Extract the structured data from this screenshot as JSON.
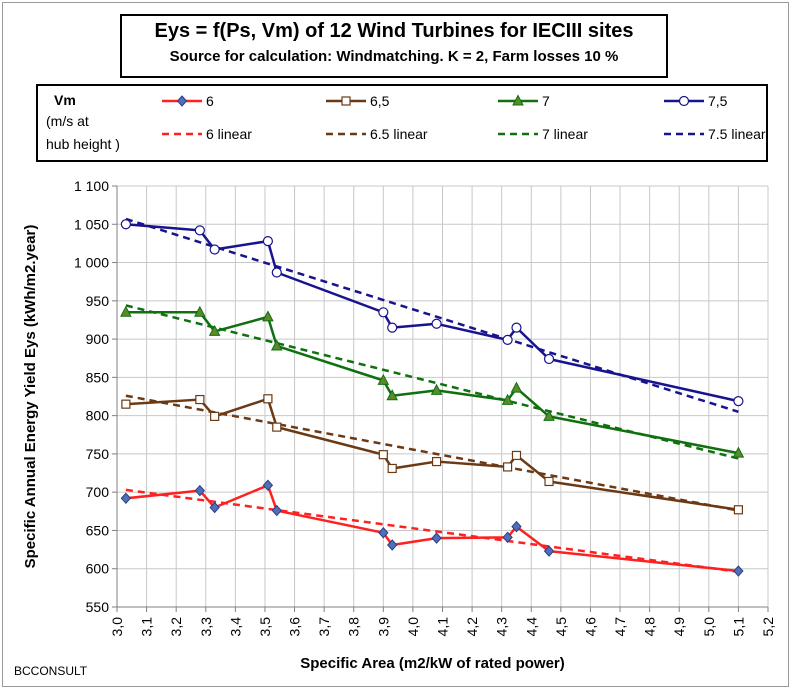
{
  "title": "Eys = f(Ps, Vm) of 12 Wind Turbines for IECIII sites",
  "subtitle": "Source for calculation:  Windmatching. K = 2, Farm losses 10 %",
  "legend": {
    "vm_label": "Vm",
    "vm_unit_1": "(m/s at",
    "vm_unit_2": "hub height )"
  },
  "footer": "BCCONSULT",
  "chart_data": {
    "type": "line",
    "title": "Eys = f(Ps, Vm) of 12 Wind Turbines for IECIII sites",
    "xlabel": "Specific Area (m2/kW of rated power)",
    "ylabel": "Specific Annual Energy Yield  Eys (kWh/m2.year)",
    "xlim": [
      3.0,
      5.2
    ],
    "ylim": [
      550,
      1100
    ],
    "x_ticks": [
      "3,0",
      "3,1",
      "3,2",
      "3,3",
      "3,4",
      "3,5",
      "3,6",
      "3,7",
      "3,8",
      "3,9",
      "4,0",
      "4,1",
      "4,2",
      "4,3",
      "4,4",
      "4,5",
      "4,6",
      "4,7",
      "4,8",
      "4,9",
      "5,0",
      "5,1",
      "5,2"
    ],
    "y_ticks": [
      "550",
      "600",
      "650",
      "700",
      "750",
      "800",
      "850",
      "900",
      "950",
      "1 000",
      "1 050",
      "1 100"
    ],
    "grid": true,
    "x": [
      3.03,
      3.28,
      3.33,
      3.51,
      3.54,
      3.9,
      3.93,
      4.08,
      4.32,
      4.35,
      4.46,
      5.1
    ],
    "series": [
      {
        "name": "6",
        "color": "#ff2020",
        "marker": "diamond",
        "marker_fill": "#4f6fb8",
        "values": [
          692,
          702,
          680,
          709,
          676,
          647,
          631,
          640,
          641,
          655,
          623,
          597
        ],
        "trend": {
          "name": "6 linear",
          "start": 703,
          "end": 596
        }
      },
      {
        "name": "6,5",
        "color": "#6b3a14",
        "marker": "square",
        "marker_fill": "#ffffff",
        "values": [
          815,
          821,
          799,
          822,
          785,
          749,
          731,
          740,
          733,
          748,
          714,
          677
        ],
        "trend": {
          "name": "6.5 linear",
          "start": 826,
          "end": 676
        }
      },
      {
        "name": "7",
        "color": "#107010",
        "marker": "triangle",
        "marker_fill": "#5a8a2a",
        "values": [
          935,
          935,
          910,
          929,
          891,
          846,
          826,
          833,
          820,
          836,
          799,
          751
        ],
        "trend": {
          "name": "7 linear",
          "start": 944,
          "end": 744
        }
      },
      {
        "name": "7,5",
        "color": "#18138e",
        "marker": "circle",
        "marker_fill": "#ffffff",
        "values": [
          1050,
          1042,
          1017,
          1028,
          987,
          935,
          915,
          920,
          899,
          915,
          874,
          819
        ],
        "trend": {
          "name": "7.5 linear",
          "start": 1057,
          "end": 805
        }
      }
    ]
  }
}
